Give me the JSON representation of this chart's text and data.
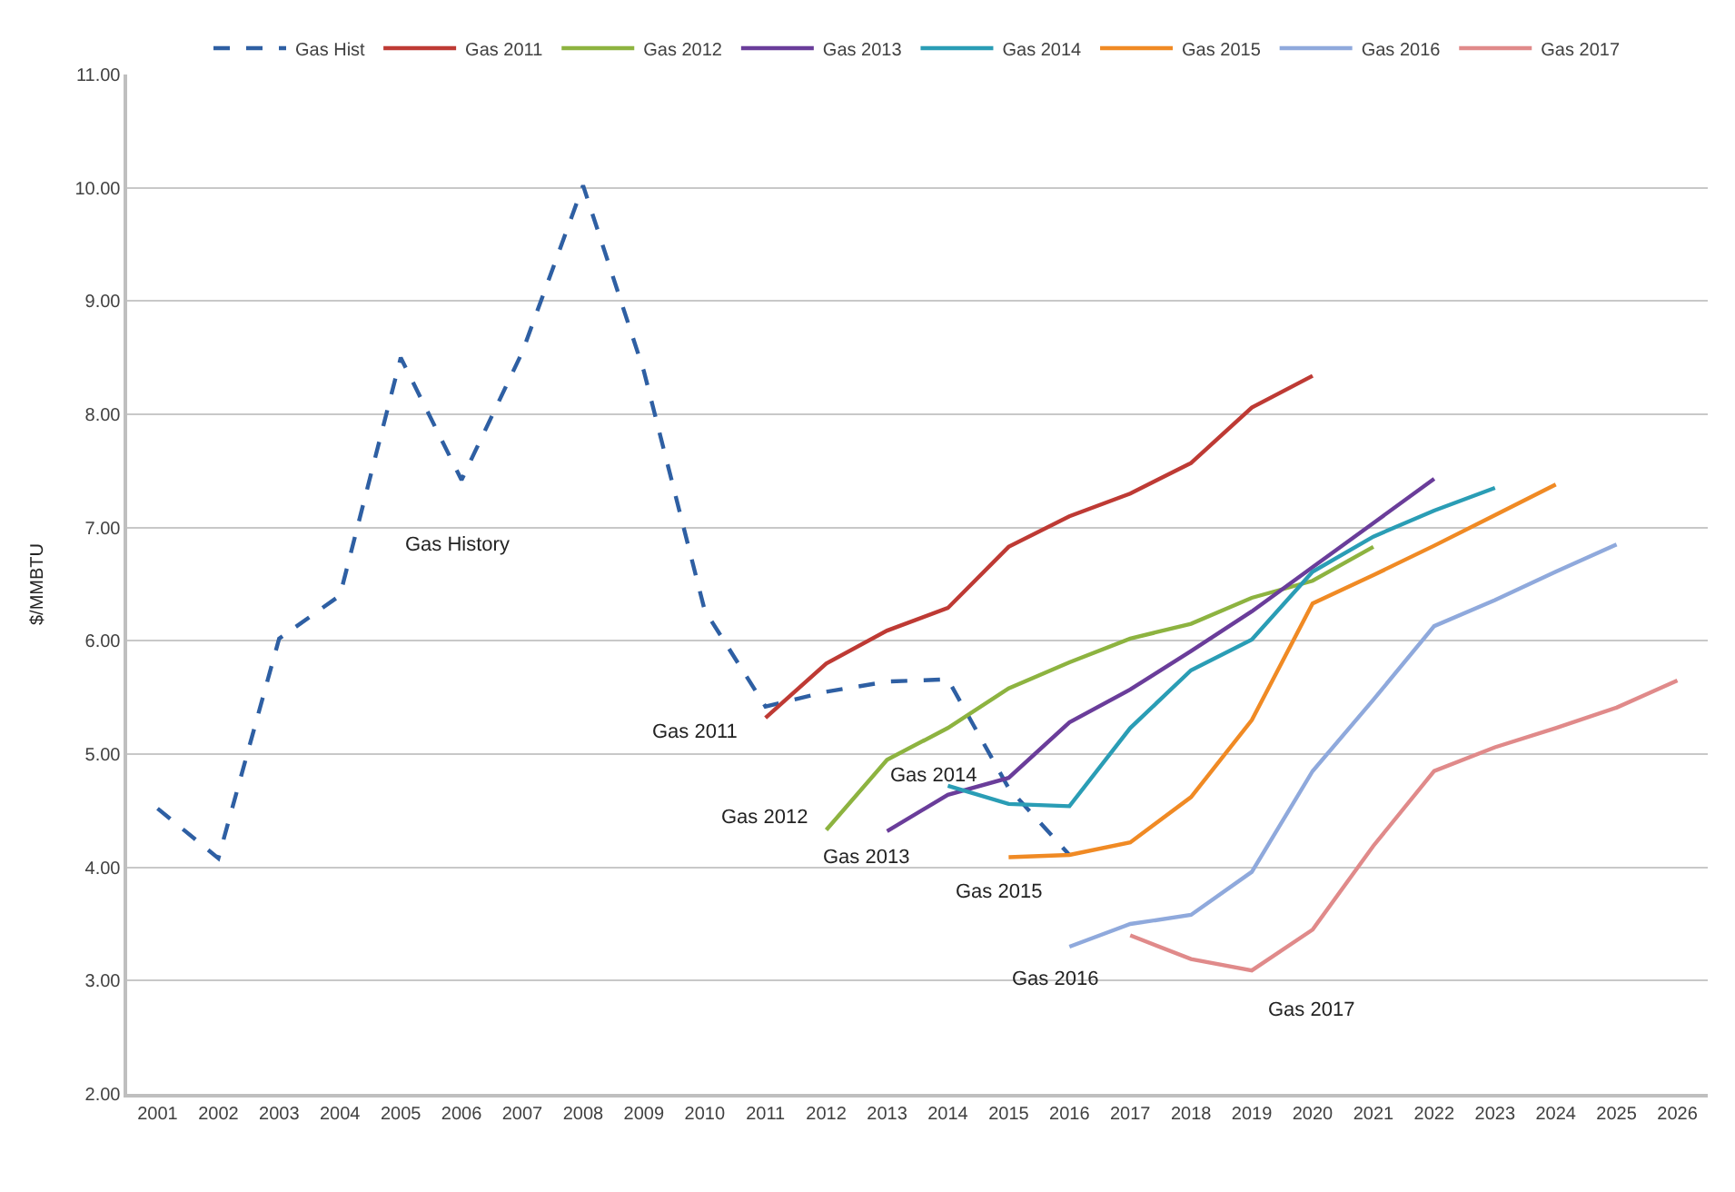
{
  "chart_data": {
    "type": "line",
    "ylabel": "$/MMBTU",
    "xlim": [
      2000.5,
      2026.5
    ],
    "xticks": [
      2001,
      2002,
      2003,
      2004,
      2005,
      2006,
      2007,
      2008,
      2009,
      2010,
      2011,
      2012,
      2013,
      2014,
      2015,
      2016,
      2017,
      2018,
      2019,
      2020,
      2021,
      2022,
      2023,
      2024,
      2025,
      2026
    ],
    "ylim": [
      2,
      11
    ],
    "yticks": [
      {
        "value": 2,
        "label": "2.00"
      },
      {
        "value": 3,
        "label": "3.00"
      },
      {
        "value": 4,
        "label": "4.00"
      },
      {
        "value": 5,
        "label": "5.00"
      },
      {
        "value": 6,
        "label": "6.00"
      },
      {
        "value": 7,
        "label": "7.00"
      },
      {
        "value": 8,
        "label": "8.00"
      },
      {
        "value": 9,
        "label": "9.00"
      },
      {
        "value": 10,
        "label": "10.00"
      },
      {
        "value": 11,
        "label": "11.00"
      }
    ],
    "grid": "y",
    "legend": "top",
    "marker": "none",
    "series": [
      {
        "name": "Gas Hist",
        "color": "#2e5fa3",
        "line_style": "dashed",
        "x": [
          2001,
          2002,
          2003,
          2004,
          2005,
          2006,
          2007,
          2008,
          2009,
          2010,
          2011,
          2012,
          2013,
          2014,
          2015,
          2016
        ],
        "values": [
          4.52,
          4.08,
          6.02,
          6.4,
          8.5,
          7.42,
          8.55,
          10.02,
          8.38,
          6.27,
          5.42,
          5.55,
          5.64,
          5.66,
          4.7,
          4.11
        ]
      },
      {
        "name": "Gas 2011",
        "color": "#be3a34",
        "line_style": "solid",
        "x": [
          2011,
          2012,
          2013,
          2014,
          2015,
          2016,
          2017,
          2018,
          2019,
          2020
        ],
        "values": [
          5.32,
          5.8,
          6.09,
          6.29,
          6.83,
          7.1,
          7.3,
          7.57,
          8.06,
          8.34
        ]
      },
      {
        "name": "Gas 2012",
        "color": "#8db340",
        "line_style": "solid",
        "x": [
          2012,
          2013,
          2014,
          2015,
          2016,
          2017,
          2018,
          2019,
          2020,
          2021
        ],
        "values": [
          4.33,
          4.95,
          5.23,
          5.58,
          5.81,
          6.02,
          6.15,
          6.38,
          6.53,
          6.83
        ]
      },
      {
        "name": "Gas 2013",
        "color": "#6a3d9a",
        "line_style": "solid",
        "x": [
          2013,
          2014,
          2015,
          2016,
          2017,
          2018,
          2019,
          2020,
          2021,
          2022
        ],
        "values": [
          4.32,
          4.64,
          4.79,
          5.28,
          5.57,
          5.91,
          6.26,
          6.65,
          7.04,
          7.43
        ]
      },
      {
        "name": "Gas 2014",
        "color": "#2a9db5",
        "line_style": "solid",
        "x": [
          2014,
          2015,
          2016,
          2017,
          2018,
          2019,
          2020,
          2021,
          2022,
          2023
        ],
        "values": [
          4.72,
          4.56,
          4.54,
          5.23,
          5.74,
          6.01,
          6.61,
          6.92,
          7.15,
          7.35
        ]
      },
      {
        "name": "Gas 2015",
        "color": "#f08a24",
        "line_style": "solid",
        "x": [
          2015,
          2016,
          2017,
          2018,
          2019,
          2020,
          2021,
          2022,
          2023,
          2024
        ],
        "values": [
          4.09,
          4.11,
          4.22,
          4.62,
          5.3,
          6.33,
          6.58,
          6.84,
          7.11,
          7.38
        ]
      },
      {
        "name": "Gas 2016",
        "color": "#8fa9dc",
        "line_style": "solid",
        "x": [
          2016,
          2017,
          2018,
          2019,
          2020,
          2021,
          2022,
          2023,
          2024,
          2025
        ],
        "values": [
          3.3,
          3.5,
          3.58,
          3.96,
          4.85,
          5.48,
          6.13,
          6.36,
          6.61,
          6.85
        ]
      },
      {
        "name": "Gas 2017",
        "color": "#e08a8a",
        "line_style": "solid",
        "x": [
          2017,
          2018,
          2019,
          2020,
          2021,
          2022,
          2023,
          2024,
          2025,
          2026
        ],
        "values": [
          3.4,
          3.19,
          3.09,
          3.45,
          4.19,
          4.85,
          5.06,
          5.23,
          5.41,
          5.65
        ]
      }
    ],
    "annotations": [
      "Gas History",
      "Gas 2011",
      "Gas 2012",
      "Gas 2013",
      "Gas 2014",
      "Gas 2015",
      "Gas 2016",
      "Gas 2017"
    ]
  }
}
